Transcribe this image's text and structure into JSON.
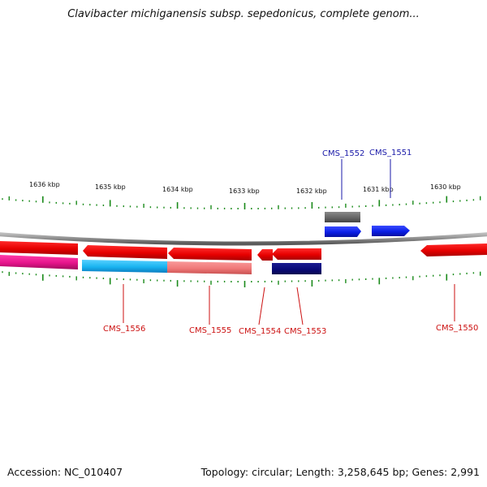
{
  "title": "Clavibacter michiganensis subsp. sepedonicus, complete genom...",
  "footer": {
    "accession": "Accession: NC_010407",
    "summary": "Topology: circular; Length: 3,258,645 bp; Genes: 2,991"
  },
  "colors": {
    "tick": "#1a8a1a",
    "backbone": "#8c8c8c",
    "forward_label": "#1a1aa8",
    "reverse_label": "#cc1111"
  },
  "scale_labels": [
    "1636 kbp",
    "1635 kbp",
    "1634 kbp",
    "1633 kbp",
    "1632 kbp",
    "1631 kbp",
    "1630 kbp"
  ],
  "gene_labels": {
    "forward": [
      "CMS_1552",
      "CMS_1551"
    ],
    "reverse": [
      "CMS_1556",
      "CMS_1555",
      "CMS_1554",
      "CMS_1553",
      "CMS_1550"
    ]
  },
  "features": [
    {
      "name": "gene-forward-gray",
      "color": "#6e6e6e"
    },
    {
      "name": "gene-forward-blue-1",
      "color": "#0a1ee6"
    },
    {
      "name": "gene-forward-blue-2",
      "color": "#0a1ee6"
    },
    {
      "name": "gene-reverse-red-1",
      "color": "#e60000"
    },
    {
      "name": "gene-reverse-red-2",
      "color": "#e60000"
    },
    {
      "name": "gene-reverse-red-3",
      "color": "#e60000"
    },
    {
      "name": "gene-reverse-red-4",
      "color": "#e60000"
    },
    {
      "name": "gene-reverse-red-5",
      "color": "#e60000"
    },
    {
      "name": "gene-reverse-red-6",
      "color": "#e60000"
    },
    {
      "name": "gene-reverse-magenta",
      "color": "#e6148c"
    },
    {
      "name": "gene-reverse-cyan",
      "color": "#1ab4f0"
    },
    {
      "name": "gene-reverse-salmon",
      "color": "#f07878"
    },
    {
      "name": "gene-reverse-navy",
      "color": "#0a0a78"
    }
  ]
}
